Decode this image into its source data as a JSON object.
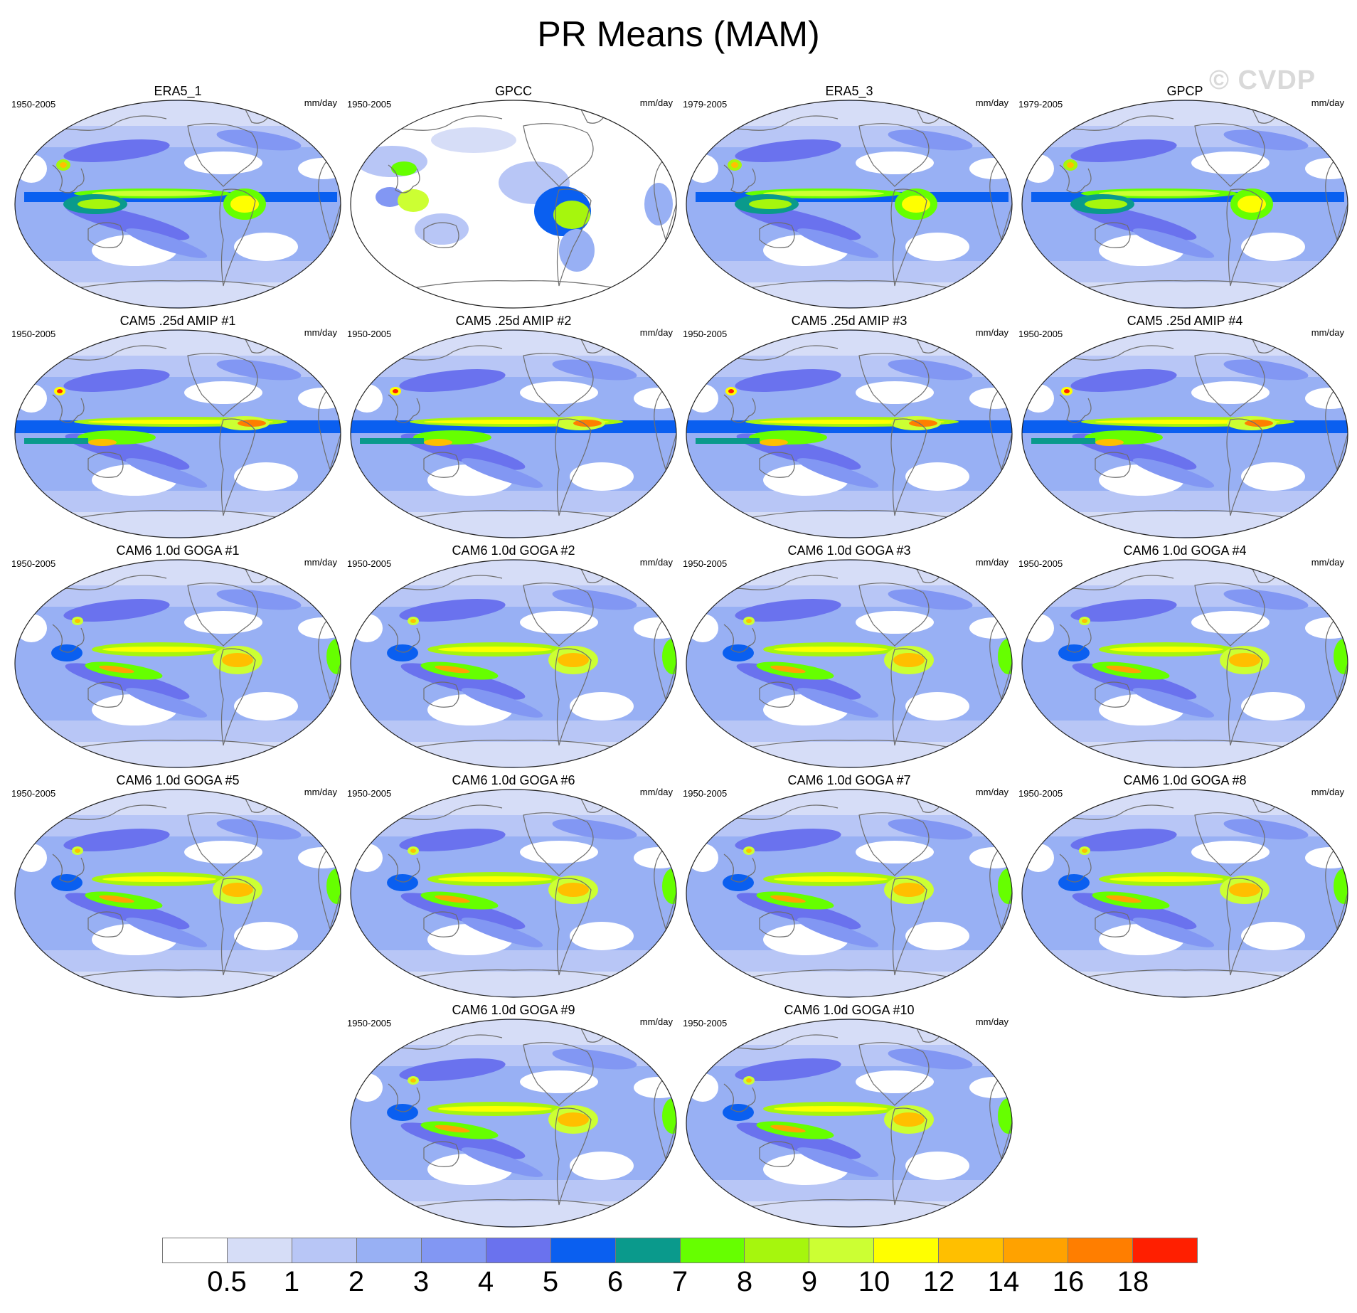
{
  "title": "PR Means (MAM)",
  "watermark": "© CVDP",
  "units": "mm/day",
  "panels": [
    {
      "title": "ERA5_1",
      "period": "1950-2005",
      "style": "obs"
    },
    {
      "title": "GPCC",
      "period": "1950-2005",
      "style": "gpcc"
    },
    {
      "title": "ERA5_3",
      "period": "1979-2005",
      "style": "obs"
    },
    {
      "title": "GPCP",
      "period": "1979-2005",
      "style": "obs"
    },
    {
      "title": "CAM5 .25d AMIP #1",
      "period": "1950-2005",
      "style": "amip"
    },
    {
      "title": "CAM5 .25d AMIP #2",
      "period": "1950-2005",
      "style": "amip"
    },
    {
      "title": "CAM5 .25d AMIP #3",
      "period": "1950-2005",
      "style": "amip"
    },
    {
      "title": "CAM5 .25d AMIP #4",
      "period": "1950-2005",
      "style": "amip"
    },
    {
      "title": "CAM6 1.0d GOGA #1",
      "period": "1950-2005",
      "style": "goga"
    },
    {
      "title": "CAM6 1.0d GOGA #2",
      "period": "1950-2005",
      "style": "goga"
    },
    {
      "title": "CAM6 1.0d GOGA #3",
      "period": "1950-2005",
      "style": "goga"
    },
    {
      "title": "CAM6 1.0d GOGA #4",
      "period": "1950-2005",
      "style": "goga"
    },
    {
      "title": "CAM6 1.0d GOGA #5",
      "period": "1950-2005",
      "style": "goga"
    },
    {
      "title": "CAM6 1.0d GOGA #6",
      "period": "1950-2005",
      "style": "goga"
    },
    {
      "title": "CAM6 1.0d GOGA #7",
      "period": "1950-2005",
      "style": "goga"
    },
    {
      "title": "CAM6 1.0d GOGA #8",
      "period": "1950-2005",
      "style": "goga"
    },
    {
      "title": "CAM6 1.0d GOGA #9",
      "period": "1950-2005",
      "style": "goga"
    },
    {
      "title": "CAM6 1.0d GOGA #10",
      "period": "1950-2005",
      "style": "goga"
    }
  ],
  "colorbar": {
    "colors": [
      "#ffffff",
      "#d6ddf7",
      "#b8c6f6",
      "#98b0f4",
      "#8297f3",
      "#6a72ee",
      "#0a5ff0",
      "#0a9a8c",
      "#66ff00",
      "#a6f60d",
      "#ccff33",
      "#ffff00",
      "#ffbf00",
      "#ffa200",
      "#ff7e00",
      "#ff1f00"
    ],
    "labels": [
      "0.5",
      "1",
      "2",
      "3",
      "4",
      "5",
      "6",
      "7",
      "8",
      "9",
      "10",
      "12",
      "14",
      "16",
      "18"
    ]
  }
}
